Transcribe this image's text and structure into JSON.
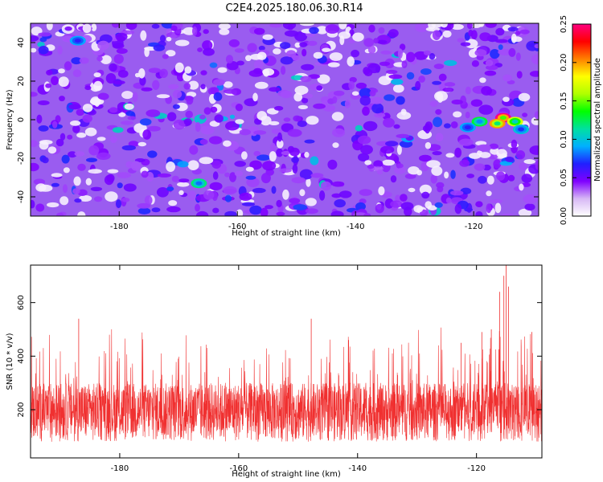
{
  "title": "C2E4.2025.180.06.30.R14",
  "chart_data": [
    {
      "type": "heatmap",
      "xlabel": "Height of straight line (km)",
      "ylabel": "Frequency (Hz)",
      "xlim": [
        -195,
        -109
      ],
      "ylim": [
        -50,
        50
      ],
      "xticks": [
        -180,
        -160,
        -140,
        -120
      ],
      "yticks": [
        -40,
        -20,
        0,
        20,
        40
      ],
      "colorbar": {
        "label": "Normalized spectral amplitude",
        "range": [
          0.0,
          0.25
        ],
        "ticks": [
          "0.00",
          "0.05",
          "0.10",
          "0.15",
          "0.20",
          "0.25"
        ],
        "colors": [
          "#ffffff",
          "#d7b8f5",
          "#7f00ff",
          "#2020ff",
          "#00b0ff",
          "#00e0a0",
          "#00ff00",
          "#b0ff00",
          "#ffff00",
          "#ff8000",
          "#ff0000",
          "#ff0080"
        ]
      },
      "background_level": 0.03,
      "hotspots": [
        {
          "x": -115,
          "y": 1,
          "value": 0.25
        },
        {
          "x": -113,
          "y": -1,
          "value": 0.17
        },
        {
          "x": -116,
          "y": -2,
          "value": 0.2
        },
        {
          "x": -119,
          "y": -1,
          "value": 0.13
        },
        {
          "x": -112,
          "y": -5,
          "value": 0.1
        },
        {
          "x": -121,
          "y": -4,
          "value": 0.09
        },
        {
          "x": -166.5,
          "y": -33,
          "value": 0.12
        },
        {
          "x": -187,
          "y": 41,
          "value": 0.09
        }
      ],
      "grid": false
    },
    {
      "type": "line",
      "xlabel": "Height of straight line (km)",
      "ylabel": "SNR (10 * v/v)",
      "xlim": [
        -195,
        -109
      ],
      "ylim": [
        20,
        740
      ],
      "xticks": [
        -180,
        -160,
        -140,
        -120
      ],
      "yticks": [
        200,
        400,
        600
      ],
      "color": "#f03030",
      "baseline_range": [
        80,
        300
      ],
      "spikes": [
        {
          "x": -186.9,
          "y": 540
        },
        {
          "x": -147.8,
          "y": 540
        },
        {
          "x": -122.6,
          "y": 450
        },
        {
          "x": -119.1,
          "y": 490
        },
        {
          "x": -117.5,
          "y": 500
        },
        {
          "x": -116.1,
          "y": 640
        },
        {
          "x": -115.4,
          "y": 700
        },
        {
          "x": -115.0,
          "y": 740
        },
        {
          "x": -114.6,
          "y": 660
        },
        {
          "x": -110.7,
          "y": 490
        }
      ],
      "grid": false
    }
  ]
}
